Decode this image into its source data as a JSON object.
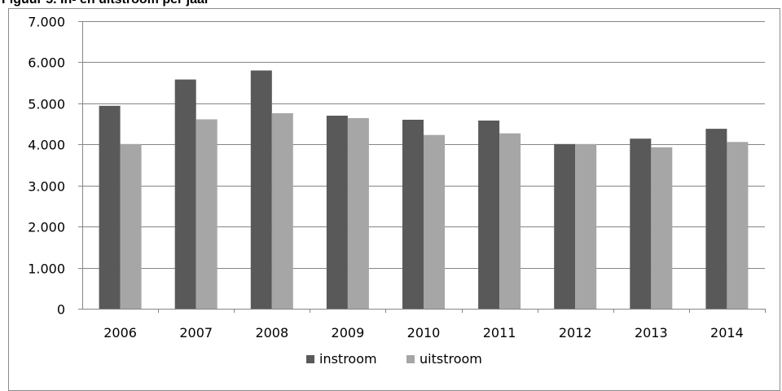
{
  "figure": {
    "title": "Figuur 5. In- en uitstroom per jaar"
  },
  "colors": {
    "instroom": "#595959",
    "uitstroom": "#a6a6a6",
    "grid": "#868686",
    "axis": "#868686"
  },
  "chart_data": {
    "type": "bar",
    "title": "Figuur 5. In- en uitstroom per jaar",
    "xlabel": "",
    "ylabel": "",
    "categories": [
      "2006",
      "2007",
      "2008",
      "2009",
      "2010",
      "2011",
      "2012",
      "2013",
      "2014"
    ],
    "series": [
      {
        "name": "instroom",
        "values": [
          4940,
          5580,
          5800,
          4700,
          4600,
          4580,
          4010,
          4140,
          4380
        ]
      },
      {
        "name": "uitstroom",
        "values": [
          4010,
          4610,
          4760,
          4640,
          4230,
          4270,
          4010,
          3930,
          4060
        ]
      }
    ],
    "ylim": [
      0,
      7000
    ],
    "yticks": [
      0,
      1000,
      2000,
      3000,
      4000,
      5000,
      6000,
      7000
    ],
    "ytick_labels": [
      "0",
      "1.000",
      "2.000",
      "3.000",
      "4.000",
      "5.000",
      "6.000",
      "7.000"
    ],
    "grid": true,
    "legend": "bottom"
  }
}
